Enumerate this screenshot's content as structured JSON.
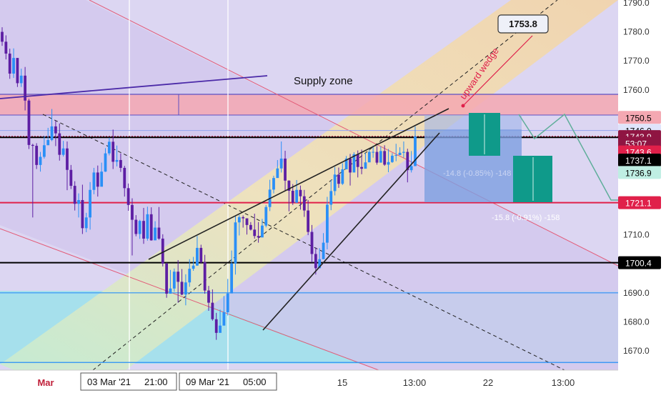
{
  "chart_data": {
    "type": "candlestick",
    "title": "",
    "xlabel": "",
    "ylabel": "",
    "ylim": [
      1665,
      1790
    ],
    "y_ticks": [
      1670.0,
      1680.0,
      1690.0,
      1700.0,
      1710.0,
      1720.0,
      1730.0,
      1740.0,
      1750.0,
      1760.0,
      1770.0,
      1780.0,
      1790.0
    ],
    "y_tick_labels": [
      "1670.0",
      "1680.0",
      "1690.0",
      "1700.0",
      "1710.0",
      "",
      "",
      "",
      "",
      "1760.0",
      "1770.0",
      "1780.0",
      "1790.0"
    ],
    "x_ticks": [
      "Mar",
      "",
      "",
      "15",
      "13:00",
      "22",
      "13:00"
    ],
    "x_cursor_labels": [
      "03 Mar '21",
      "21:00",
      "09 Mar '21",
      "05:00"
    ],
    "grid": false,
    "candles": [
      [
        1780.0,
        1776.6,
        1781.6,
        1775.2
      ],
      [
        1776.6,
        1772.5,
        1778.8,
        1770.5
      ],
      [
        1772.5,
        1765.6,
        1774.2,
        1763.8
      ],
      [
        1765.6,
        1771.0,
        1774.3,
        1764.1
      ],
      [
        1771.0,
        1762.3,
        1771.0,
        1761.0
      ],
      [
        1762.3,
        1764.9,
        1767.3,
        1761.0
      ],
      [
        1764.9,
        1756.3,
        1767.9,
        1752.9
      ],
      [
        1756.3,
        1741.0,
        1756.9,
        1739.6
      ],
      [
        1741.0,
        1740.7,
        1741.4,
        1716.0
      ],
      [
        1740.7,
        1734.1,
        1741.6,
        1732.7
      ],
      [
        1734.1,
        1736.9,
        1738.6,
        1731.8
      ],
      [
        1736.9,
        1740.9,
        1744.1,
        1736.3
      ],
      [
        1740.9,
        1742.7,
        1746.9,
        1741.2
      ],
      [
        1742.7,
        1747.4,
        1753.4,
        1742.3
      ],
      [
        1747.4,
        1745.0,
        1749.4,
        1740.6
      ],
      [
        1745.0,
        1737.6,
        1748.4,
        1735.6
      ],
      [
        1737.6,
        1739.8,
        1742.4,
        1737.0
      ],
      [
        1739.8,
        1732.4,
        1742.2,
        1725.4
      ],
      [
        1732.4,
        1726.9,
        1734.1,
        1725.8
      ],
      [
        1726.9,
        1720.7,
        1728.5,
        1718.4
      ],
      [
        1720.7,
        1722.0,
        1724.3,
        1716.0
      ],
      [
        1722.0,
        1712.3,
        1727.3,
        1710.3
      ],
      [
        1712.3,
        1716.0,
        1717.6,
        1710.9
      ],
      [
        1716.0,
        1725.5,
        1728.2,
        1711.8
      ],
      [
        1725.5,
        1731.5,
        1733.1,
        1724.0
      ],
      [
        1731.5,
        1726.6,
        1733.9,
        1723.2
      ],
      [
        1726.6,
        1731.8,
        1734.9,
        1727.6
      ],
      [
        1731.8,
        1738.1,
        1739.9,
        1731.7
      ],
      [
        1738.1,
        1742.1,
        1743.5,
        1737.4
      ],
      [
        1742.1,
        1735.2,
        1746.3,
        1732.7
      ],
      [
        1735.2,
        1735.8,
        1740.8,
        1733.6
      ],
      [
        1735.8,
        1733.1,
        1738.1,
        1731.7
      ],
      [
        1733.1,
        1726.1,
        1733.8,
        1723.2
      ],
      [
        1726.1,
        1720.3,
        1727.7,
        1718.3
      ],
      [
        1720.3,
        1715.2,
        1722.6,
        1702.9
      ],
      [
        1715.2,
        1710.3,
        1716.8,
        1709.5
      ],
      [
        1710.3,
        1714.8,
        1715.2,
        1708.6
      ],
      [
        1714.8,
        1708.7,
        1719.3,
        1706.9
      ],
      [
        1708.7,
        1717.1,
        1719.7,
        1708.0
      ],
      [
        1717.1,
        1708.1,
        1719.5,
        1708.0
      ],
      [
        1708.1,
        1712.5,
        1714.7,
        1711.8
      ],
      [
        1712.5,
        1708.7,
        1719.6,
        1708.3
      ],
      [
        1708.7,
        1700.1,
        1710.2,
        1699.1
      ],
      [
        1700.1,
        1689.7,
        1700.4,
        1688.3
      ],
      [
        1689.7,
        1691.5,
        1697.9,
        1689.9
      ],
      [
        1691.5,
        1697.3,
        1698.4,
        1690.4
      ],
      [
        1697.3,
        1693.8,
        1701.3,
        1686.6
      ],
      [
        1693.8,
        1689.4,
        1698.2,
        1689.2
      ],
      [
        1689.4,
        1693.6,
        1696.4,
        1685.7
      ],
      [
        1693.6,
        1698.3,
        1701.6,
        1692.1
      ],
      [
        1698.3,
        1699.4,
        1702.4,
        1697.6
      ],
      [
        1699.4,
        1705.5,
        1709.6,
        1699.3
      ],
      [
        1705.5,
        1700.6,
        1706.6,
        1700.0
      ],
      [
        1700.6,
        1690.8,
        1703.1,
        1689.7
      ],
      [
        1690.8,
        1686.6,
        1692.4,
        1683.8
      ],
      [
        1686.6,
        1680.9,
        1691.2,
        1680.4
      ],
      [
        1680.9,
        1676.2,
        1683.1,
        1673.8
      ],
      [
        1676.2,
        1678.7,
        1684.2,
        1677.4
      ],
      [
        1678.7,
        1683.3,
        1688.9,
        1679.8
      ],
      [
        1683.3,
        1689.8,
        1694.8,
        1682.2
      ],
      [
        1689.8,
        1700.1,
        1704.6,
        1690.1
      ],
      [
        1700.1,
        1714.3,
        1716.5,
        1696.3
      ],
      [
        1714.3,
        1716.1,
        1716.8,
        1709.8
      ],
      [
        1716.1,
        1715.7,
        1716.7,
        1712.5
      ],
      [
        1715.7,
        1713.4,
        1714.4,
        1710.1
      ],
      [
        1713.4,
        1711.8,
        1714.4,
        1711.5
      ],
      [
        1711.8,
        1709.6,
        1717.3,
        1708.7
      ],
      [
        1709.6,
        1709.1,
        1714.4,
        1707.3
      ],
      [
        1709.1,
        1713.2,
        1715.5,
        1709.2
      ],
      [
        1713.2,
        1719.6,
        1720.3,
        1712.6
      ],
      [
        1719.6,
        1725.6,
        1729.0,
        1718.2
      ],
      [
        1725.6,
        1729.6,
        1730.4,
        1724.3
      ],
      [
        1729.6,
        1732.9,
        1735.8,
        1732.0
      ],
      [
        1732.9,
        1736.3,
        1742.2,
        1731.5
      ],
      [
        1736.3,
        1728.7,
        1739.0,
        1725.3
      ],
      [
        1728.7,
        1725.2,
        1728.8,
        1718.1
      ],
      [
        1725.2,
        1721.1,
        1727.5,
        1720.3
      ],
      [
        1721.1,
        1725.5,
        1728.9,
        1721.0
      ],
      [
        1725.5,
        1723.3,
        1727.0,
        1718.7
      ],
      [
        1723.3,
        1718.4,
        1725.5,
        1716.2
      ],
      [
        1718.4,
        1711.0,
        1722.0,
        1709.9
      ],
      [
        1711.0,
        1703.4,
        1713.4,
        1700.5
      ],
      [
        1703.4,
        1698.5,
        1705.6,
        1696.3
      ],
      [
        1698.5,
        1701.6,
        1705.4,
        1700.4
      ],
      [
        1701.6,
        1707.3,
        1710.6,
        1707.0
      ],
      [
        1707.3,
        1720.4,
        1723.1,
        1705.0
      ],
      [
        1720.4,
        1725.1,
        1729.0,
        1718.5
      ],
      [
        1725.1,
        1730.8,
        1733.4,
        1723.6
      ],
      [
        1730.8,
        1727.6,
        1733.2,
        1726.2
      ],
      [
        1727.6,
        1732.6,
        1734.7,
        1727.2
      ],
      [
        1732.6,
        1736.3,
        1737.2,
        1734.5
      ],
      [
        1736.3,
        1731.5,
        1737.9,
        1727.0
      ],
      [
        1731.5,
        1737.8,
        1738.5,
        1733.0
      ],
      [
        1737.8,
        1733.4,
        1739.1,
        1729.8
      ],
      [
        1733.4,
        1732.8,
        1739.4,
        1730.9
      ],
      [
        1732.8,
        1735.0,
        1738.3,
        1734.0
      ],
      [
        1735.0,
        1738.6,
        1739.4,
        1736.3
      ],
      [
        1738.6,
        1738.6,
        1740.8,
        1736.6
      ],
      [
        1738.6,
        1734.9,
        1740.6,
        1734.2
      ],
      [
        1734.9,
        1738.9,
        1740.5,
        1735.3
      ],
      [
        1738.9,
        1734.2,
        1740.9,
        1733.8
      ],
      [
        1734.2,
        1735.1,
        1739.6,
        1731.6
      ],
      [
        1735.1,
        1737.3,
        1738.2,
        1734.8
      ],
      [
        1737.3,
        1737.5,
        1741.4,
        1735.4
      ],
      [
        1737.5,
        1738.3,
        1740.2,
        1738.1
      ],
      [
        1738.3,
        1738.6,
        1742.2,
        1736.6
      ],
      [
        1738.6,
        1732.3,
        1739.7,
        1728.1
      ],
      [
        1732.3,
        1733.7,
        1738.9,
        1731.5
      ],
      [
        1733.7,
        1743.9,
        1747.4,
        1735.3
      ]
    ],
    "colors": {
      "bull": "#2a8ff7",
      "bear": "#5d1ea3",
      "accent_red": "#e0204a",
      "support_black": "#000000",
      "blue_zone_fill": "#a6e0ec",
      "supply_zone_fill": "#f4a8b2",
      "channel_fill": "#f2d9a6",
      "position_blue": "#7d9fe0",
      "position_green": "#0f9a8a",
      "projection_line": "#5fae9a"
    },
    "horizontal_lines": [
      {
        "price": 1746.0,
        "style": "solid",
        "color": "#9aa8ee"
      },
      {
        "price": 1743.9,
        "style": "dotted",
        "color": "#b01a3a"
      },
      {
        "price": 1743.6,
        "style": "solid",
        "color": "#000000"
      },
      {
        "price": 1721.1,
        "style": "solid",
        "color": "#e0204a"
      },
      {
        "price": 1700.4,
        "style": "solid",
        "color": "#000000"
      },
      {
        "price": 1690.0,
        "style": "solid",
        "color": "#2a8ff7"
      },
      {
        "price": 1666.0,
        "style": "solid",
        "color": "#2a8ff7"
      }
    ],
    "price_labels": [
      {
        "text": "1750.5",
        "price": 1750.5,
        "bg": "#f4a8b2",
        "fg": "#000000"
      },
      {
        "text": "1746.0",
        "price": 1746.0,
        "bg": "#dfe4fb",
        "fg": "#000000"
      },
      {
        "text": "1743.9",
        "price": 1743.9,
        "bg": "#8f1542",
        "fg": "#ffffff"
      },
      {
        "text": "53:07",
        "price": 1741.6,
        "bg": "#8f1542",
        "fg": "#ffffff"
      },
      {
        "text": "1743.6",
        "price": 1738.6,
        "bg": "#e0204a",
        "fg": "#ffffff"
      },
      {
        "text": "1737.1",
        "price": 1735.8,
        "bg": "#000000",
        "fg": "#ffffff"
      },
      {
        "text": "1736.9",
        "price": 1731.5,
        "bg": "#bfeee3",
        "fg": "#000000"
      },
      {
        "text": "1721.1",
        "price": 1721.1,
        "bg": "#e0204a",
        "fg": "#ffffff"
      },
      {
        "text": "1700.4",
        "price": 1700.4,
        "bg": "#000000",
        "fg": "#ffffff"
      }
    ],
    "annotations": {
      "supply_zone": "Supply zone",
      "upward_wedge": "upward wedge",
      "target_callout": "1753.8",
      "position_1": "-14.8 (-0.85%) -148",
      "position_2": "-15.8 (-0.91%) -158"
    }
  }
}
